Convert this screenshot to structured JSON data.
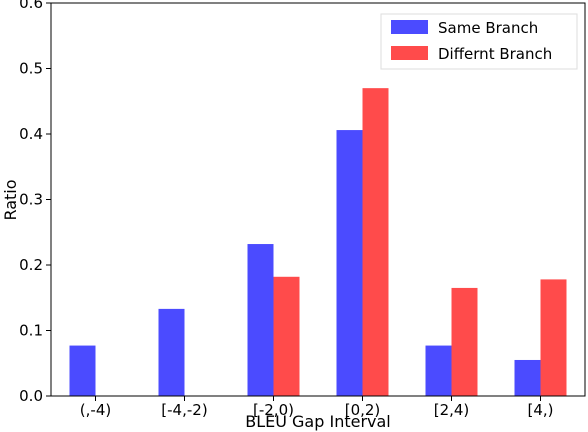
{
  "chart_data": {
    "type": "bar",
    "xlabel": "BLEU Gap Interval",
    "ylabel": "Ratio",
    "ylim": [
      0,
      0.6
    ],
    "yticks": [
      "0.0",
      "0.1",
      "0.2",
      "0.3",
      "0.4",
      "0.5",
      "0.6"
    ],
    "categories": [
      "(,-4)",
      "[-4,-2)",
      "[-2,0)",
      "[0,2)",
      "[2,4)",
      "[4,)"
    ],
    "series": [
      {
        "name": "Same Branch",
        "color": "#4b4bff",
        "values": [
          0.077,
          0.133,
          0.232,
          0.406,
          0.077,
          0.055
        ]
      },
      {
        "name": "Differnt Branch",
        "color": "#ff4b4b",
        "values": [
          0.0,
          0.0,
          0.182,
          0.47,
          0.165,
          0.178
        ]
      }
    ],
    "legend_position": "top-right",
    "grid": false
  }
}
